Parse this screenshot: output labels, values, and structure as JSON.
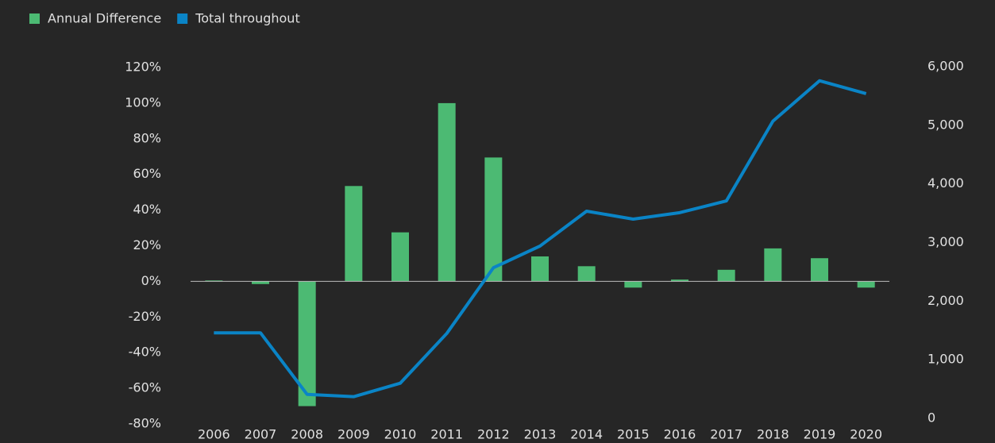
{
  "chart_data": {
    "type": "bar",
    "categories": [
      "2006",
      "2007",
      "2008",
      "2009",
      "2010",
      "2011",
      "2012",
      "2013",
      "2014",
      "2015",
      "2016",
      "2017",
      "2018",
      "2019",
      "2020"
    ],
    "series": [
      {
        "name": "Annual Difference",
        "type": "bar",
        "color": "#4cba73",
        "values": [
          0.5,
          -1.5,
          -70,
          53.5,
          27.5,
          100,
          69.5,
          14,
          8.5,
          -3.5,
          1,
          6.5,
          18.5,
          13,
          -3.5
        ]
      },
      {
        "name": "Total throughout",
        "type": "line",
        "axis": "y2",
        "color": "#0a84c6",
        "values": [
          1460,
          1460,
          410,
          370,
          600,
          1450,
          2570,
          2940,
          3535,
          3400,
          3510,
          3710,
          5070,
          5760,
          5540
        ]
      }
    ],
    "ylim": [
      -80,
      120
    ],
    "yticks": [
      {
        "value": -80,
        "label": "-80%"
      },
      {
        "value": -60,
        "label": "-60%"
      },
      {
        "value": -40,
        "label": "-40%"
      },
      {
        "value": -20,
        "label": "-20%"
      },
      {
        "value": 0,
        "label": "0%"
      },
      {
        "value": 20,
        "label": "20%"
      },
      {
        "value": 40,
        "label": "40%"
      },
      {
        "value": 60,
        "label": "60%"
      },
      {
        "value": 80,
        "label": "80%"
      },
      {
        "value": 100,
        "label": "100%"
      },
      {
        "value": 120,
        "label": "120%"
      }
    ],
    "y2lim": [
      0,
      6000
    ],
    "y2ticks": [
      0,
      {
        "value": 1000,
        "label": "1,000"
      },
      {
        "value": 2000,
        "label": "2,000"
      },
      {
        "value": 3000,
        "label": "3,000"
      },
      {
        "value": 4000,
        "label": "4,000"
      },
      {
        "value": 5000,
        "label": "5,000"
      },
      {
        "value": 6000,
        "label": "6,000"
      }
    ],
    "legend": "top-left"
  }
}
